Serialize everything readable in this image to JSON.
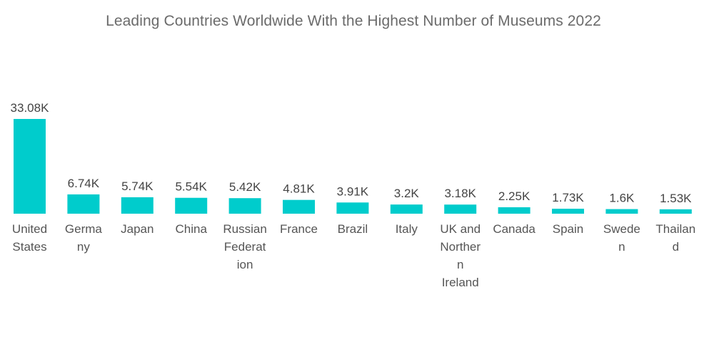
{
  "chart_data": {
    "type": "bar",
    "title": "Leading Countries Worldwide With the Highest Number of Museums 2022",
    "bar_color": "#00cccc",
    "categories": [
      {
        "lines": [
          "United",
          "States"
        ]
      },
      {
        "lines": [
          "Germa",
          "ny"
        ]
      },
      {
        "lines": [
          "Japan"
        ]
      },
      {
        "lines": [
          "China"
        ]
      },
      {
        "lines": [
          "Russian",
          "Federat",
          "ion"
        ]
      },
      {
        "lines": [
          "France"
        ]
      },
      {
        "lines": [
          "Brazil"
        ]
      },
      {
        "lines": [
          "Italy"
        ]
      },
      {
        "lines": [
          "UK and",
          "Norther",
          "n",
          "Ireland"
        ]
      },
      {
        "lines": [
          "Canada"
        ]
      },
      {
        "lines": [
          "Spain"
        ]
      },
      {
        "lines": [
          "Swede",
          "n"
        ]
      },
      {
        "lines": [
          "Thailan",
          "d"
        ]
      }
    ],
    "values": [
      33.08,
      6.74,
      5.74,
      5.54,
      5.42,
      4.81,
      3.91,
      3.2,
      3.18,
      2.25,
      1.73,
      1.6,
      1.53
    ],
    "value_labels": [
      "33.08K",
      "6.74K",
      "5.74K",
      "5.54K",
      "5.42K",
      "4.81K",
      "3.91K",
      "3.2K",
      "3.18K",
      "2.25K",
      "1.73K",
      "1.6K",
      "1.53K"
    ],
    "ylim": [
      0,
      33.08
    ],
    "grid": false,
    "legend": "none"
  }
}
